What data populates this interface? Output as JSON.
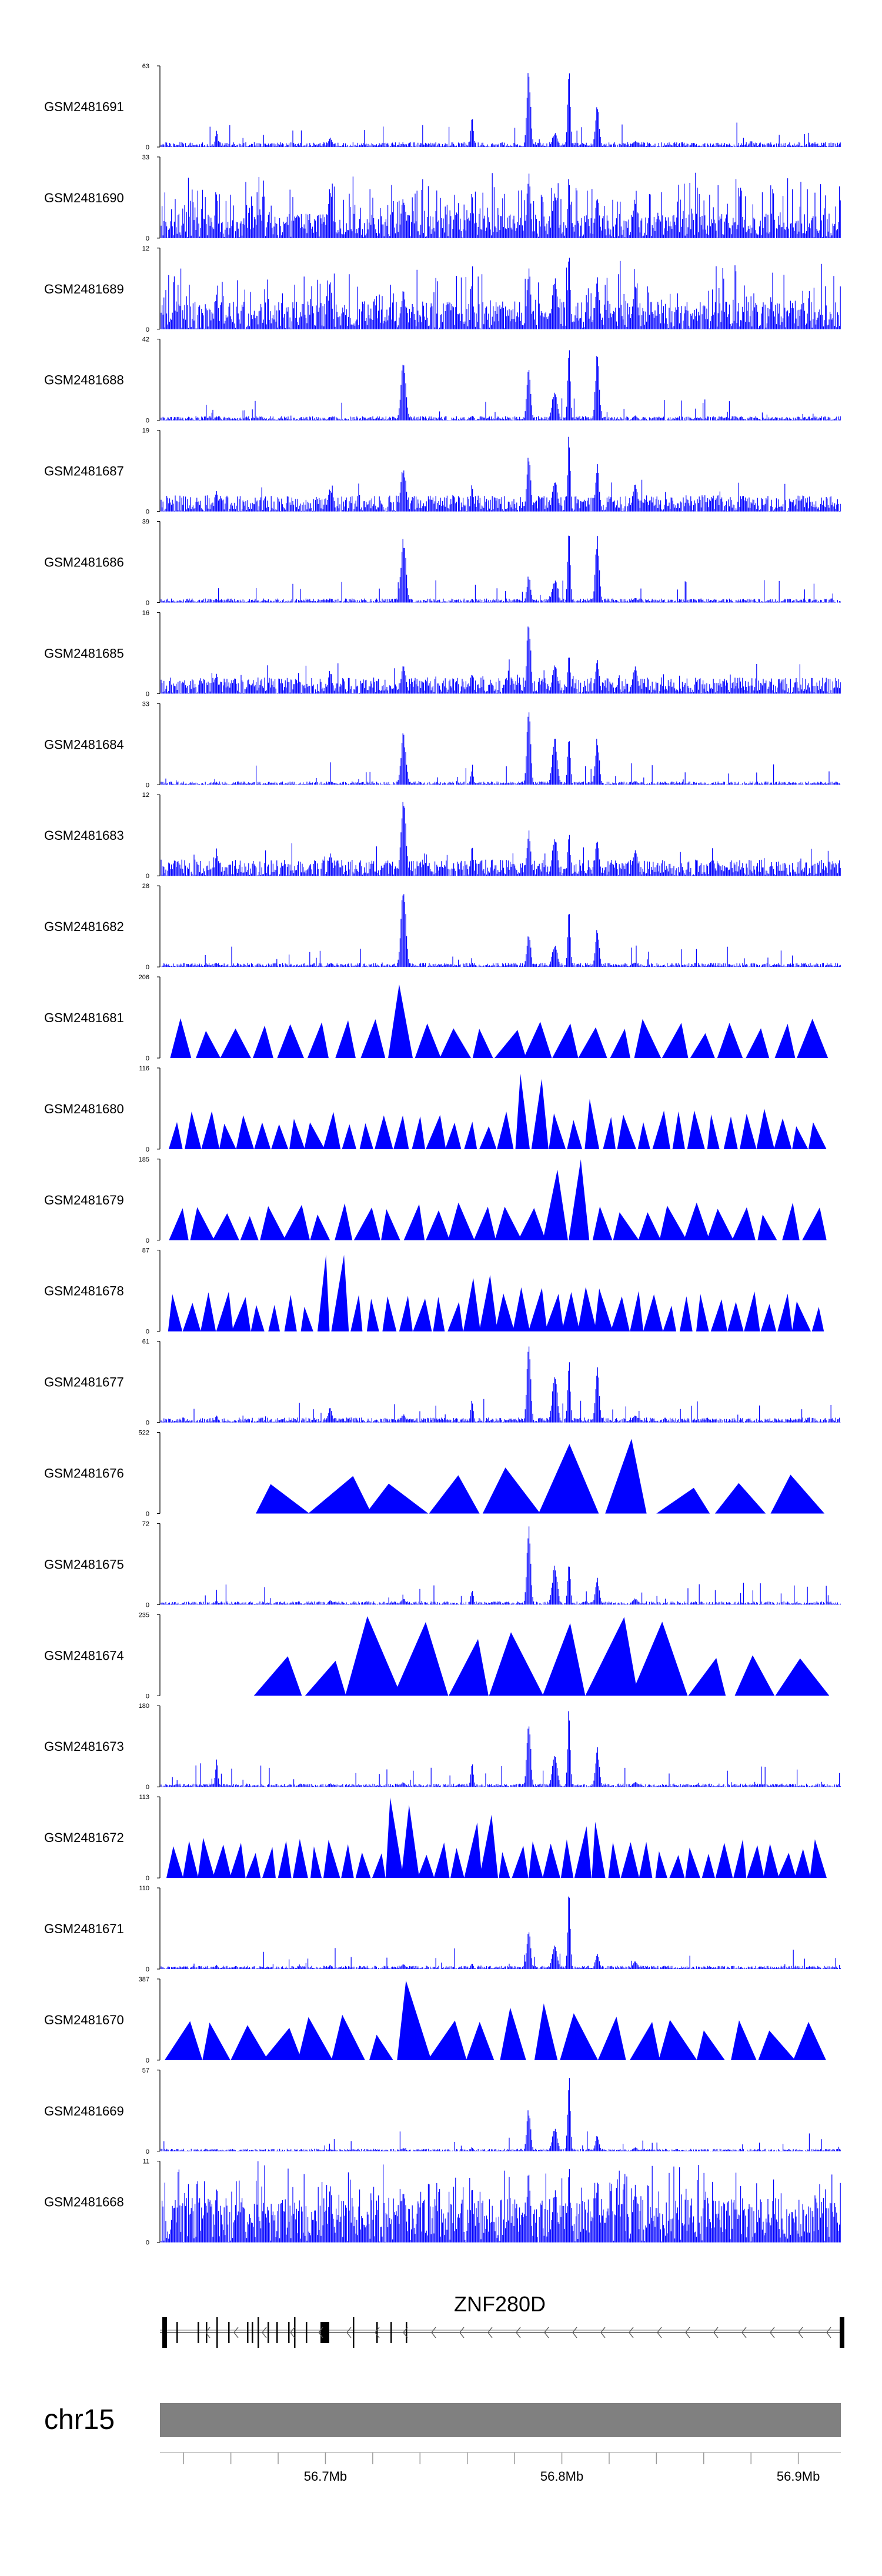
{
  "chart_data": {
    "type": "area",
    "title": "",
    "x_axis": {
      "chromosome": "chr15",
      "tick_labels": [
        "56.7Mb",
        "56.8Mb",
        "56.9Mb"
      ],
      "tick_values": [
        56.7,
        56.8,
        56.9
      ],
      "xlim": [
        56.63,
        56.918
      ]
    },
    "peak_positions": [
      56.654,
      56.702,
      56.733,
      56.762,
      56.786,
      56.797,
      56.803,
      56.815,
      56.831
    ],
    "series": [
      {
        "name": "GSM2481691",
        "ymax": 63,
        "style": "signal",
        "peaks": [
          0.22,
          0.12,
          0.04,
          0.42,
          1.0,
          0.18,
          1.0,
          0.55,
          0.08
        ],
        "baseline": 0.06
      },
      {
        "name": "GSM2481690",
        "ymax": 33,
        "style": "dense",
        "peaks": [
          0.6,
          0.7,
          0.5,
          0.6,
          0.9,
          0.6,
          0.8,
          0.6,
          0.5
        ],
        "baseline": 0.3
      },
      {
        "name": "GSM2481689",
        "ymax": 12,
        "style": "dense",
        "peaks": [
          0.5,
          0.6,
          0.5,
          0.6,
          0.8,
          0.7,
          1.0,
          0.7,
          0.6
        ],
        "baseline": 0.35
      },
      {
        "name": "GSM2481688",
        "ymax": 42,
        "style": "signal",
        "peaks": [
          0.05,
          0.05,
          0.75,
          0.06,
          0.7,
          0.4,
          1.0,
          0.85,
          0.06
        ],
        "baseline": 0.05
      },
      {
        "name": "GSM2481687",
        "ymax": 19,
        "style": "signal",
        "peaks": [
          0.3,
          0.3,
          0.6,
          0.35,
          0.75,
          0.4,
          1.0,
          0.6,
          0.35
        ],
        "baseline": 0.2
      },
      {
        "name": "GSM2481686",
        "ymax": 39,
        "style": "signal",
        "peaks": [
          0.05,
          0.05,
          0.85,
          0.05,
          0.35,
          0.3,
          1.0,
          0.85,
          0.06
        ],
        "baseline": 0.05
      },
      {
        "name": "GSM2481685",
        "ymax": 16,
        "style": "signal",
        "peaks": [
          0.3,
          0.3,
          0.35,
          0.3,
          1.0,
          0.4,
          0.5,
          0.45,
          0.35
        ],
        "baseline": 0.2
      },
      {
        "name": "GSM2481684",
        "ymax": 33,
        "style": "signal",
        "peaks": [
          0.04,
          0.04,
          0.65,
          0.2,
          1.0,
          0.6,
          0.7,
          0.6,
          0.05
        ],
        "baseline": 0.04
      },
      {
        "name": "GSM2481683",
        "ymax": 12,
        "style": "signal",
        "peaks": [
          0.35,
          0.3,
          1.0,
          0.4,
          0.6,
          0.5,
          0.55,
          0.5,
          0.35
        ],
        "baseline": 0.2
      },
      {
        "name": "GSM2481682",
        "ymax": 28,
        "style": "signal",
        "peaks": [
          0.05,
          0.05,
          1.0,
          0.06,
          0.45,
          0.3,
          0.7,
          0.5,
          0.06
        ],
        "baseline": 0.05
      },
      {
        "name": "GSM2481681",
        "ymax": 206,
        "style": "triangles",
        "count": 24,
        "peaks": [
          0.38,
          0.38,
          1.0,
          0.38,
          0.38,
          0.38,
          0.38,
          0.38,
          0.38
        ]
      },
      {
        "name": "GSM2481680",
        "ymax": 116,
        "style": "triangles",
        "count": 38,
        "peaks": [
          0.35,
          0.35,
          0.4,
          0.35,
          1.0,
          0.4,
          0.35,
          0.7,
          0.35
        ]
      },
      {
        "name": "GSM2481679",
        "ymax": 185,
        "style": "triangles",
        "count": 28,
        "peaks": [
          0.2,
          0.2,
          0.4,
          0.25,
          0.3,
          0.35,
          1.0,
          0.3,
          0.35
        ]
      },
      {
        "name": "GSM2481678",
        "ymax": 87,
        "style": "triangles",
        "count": 40,
        "peaks": [
          0.5,
          1.0,
          0.5,
          0.7,
          0.6,
          0.5,
          0.5,
          0.6,
          0.5
        ]
      },
      {
        "name": "GSM2481677",
        "ymax": 61,
        "style": "signal",
        "peaks": [
          0.1,
          0.2,
          0.1,
          0.3,
          1.0,
          0.6,
          0.85,
          0.7,
          0.1
        ],
        "baseline": 0.06
      },
      {
        "name": "GSM2481676",
        "ymax": 522,
        "style": "triangles",
        "count": 10,
        "peaks": [
          0.3,
          0.3,
          0.3,
          0.3,
          0.65,
          0.3,
          0.3,
          1.0,
          0.35
        ]
      },
      {
        "name": "GSM2481675",
        "ymax": 72,
        "style": "signal",
        "peaks": [
          0.06,
          0.06,
          0.08,
          0.2,
          1.0,
          0.5,
          0.6,
          0.35,
          0.08
        ],
        "baseline": 0.04
      },
      {
        "name": "GSM2481674",
        "ymax": 235,
        "style": "triangles",
        "count": 12,
        "peaks": [
          0.55,
          0.5,
          1.0,
          0.8,
          0.5,
          0.6,
          0.5,
          1.0,
          1.0
        ]
      },
      {
        "name": "GSM2481673",
        "ymax": 180,
        "style": "signal",
        "peaks": [
          0.35,
          0.05,
          0.06,
          0.3,
          0.9,
          0.4,
          1.0,
          0.5,
          0.06
        ],
        "baseline": 0.04
      },
      {
        "name": "GSM2481672",
        "ymax": 113,
        "style": "triangles",
        "count": 42,
        "peaks": [
          0.45,
          0.45,
          1.0,
          0.8,
          0.45,
          0.45,
          0.5,
          0.7,
          0.45
        ]
      },
      {
        "name": "GSM2481671",
        "ymax": 110,
        "style": "signal",
        "peaks": [
          0.06,
          0.05,
          0.06,
          0.08,
          0.55,
          0.3,
          1.0,
          0.2,
          0.1
        ],
        "baseline": 0.04
      },
      {
        "name": "GSM2481670",
        "ymax": 387,
        "style": "triangles",
        "count": 20,
        "peaks": [
          0.5,
          0.6,
          1.0,
          0.5,
          0.7,
          0.55,
          0.6,
          0.6,
          0.5
        ]
      },
      {
        "name": "GSM2481669",
        "ymax": 57,
        "style": "signal",
        "peaks": [
          0.03,
          0.03,
          0.04,
          0.05,
          0.55,
          0.3,
          1.0,
          0.2,
          0.05
        ],
        "baseline": 0.03
      },
      {
        "name": "GSM2481668",
        "ymax": 11,
        "style": "dense",
        "peaks": [
          0.8,
          0.7,
          0.7,
          0.8,
          0.9,
          0.7,
          1.0,
          0.8,
          0.7
        ],
        "baseline": 0.55
      }
    ],
    "gene": {
      "name": "ZNF280D",
      "strand": "-"
    }
  },
  "colors": {
    "signal": "#0000ff",
    "axis": "#000000",
    "ideogram": "#808080",
    "gene": "#000000"
  },
  "y_min_label": "0"
}
